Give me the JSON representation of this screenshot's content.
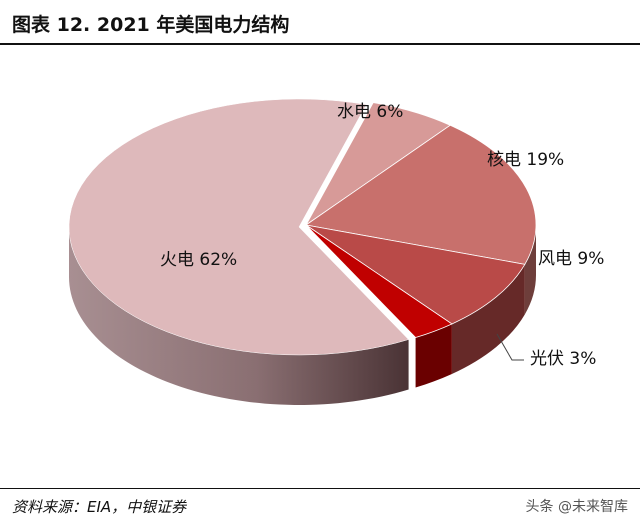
{
  "header": {
    "title": "图表 12. 2021 年美国电力结构"
  },
  "footer": {
    "source": "资料来源：EIA，中银证券",
    "watermark": "头条 @未来智库"
  },
  "chart_data": {
    "type": "pie",
    "title": "图表 12. 2021 年美国电力结构",
    "style": "3d-exploded",
    "slices": [
      {
        "label": "水电 6%",
        "name": "水电",
        "value": 6,
        "color": "#d79a98"
      },
      {
        "label": "核电 19%",
        "name": "核电",
        "value": 19,
        "color": "#c8706c"
      },
      {
        "label": "风电 9%",
        "name": "风电",
        "value": 9,
        "color": "#b94a48"
      },
      {
        "label": "光伏 3%",
        "name": "光伏",
        "value": 3,
        "color": "#c00000"
      },
      {
        "label": "火电 62%",
        "name": "火电",
        "value": 62,
        "color": "#deb9bb"
      }
    ]
  }
}
